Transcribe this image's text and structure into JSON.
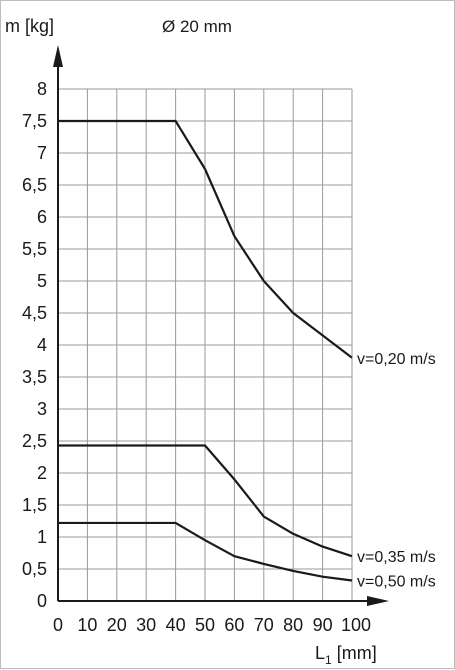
{
  "chart_data": {
    "type": "line",
    "title": "Ø 20 mm",
    "ylabel": "m [kg]",
    "xlabel_main": "L",
    "xlabel_sub": "1",
    "xlabel_unit": "[mm]",
    "xlim": [
      0,
      100
    ],
    "ylim": [
      0,
      8
    ],
    "grid": true,
    "x_ticks": [
      {
        "v": 0,
        "label": "0"
      },
      {
        "v": 10,
        "label": "10"
      },
      {
        "v": 20,
        "label": "20"
      },
      {
        "v": 30,
        "label": "30"
      },
      {
        "v": 40,
        "label": "40"
      },
      {
        "v": 50,
        "label": "50"
      },
      {
        "v": 60,
        "label": "60"
      },
      {
        "v": 70,
        "label": "70"
      },
      {
        "v": 80,
        "label": "80"
      },
      {
        "v": 90,
        "label": "90"
      },
      {
        "v": 100,
        "label": "100"
      }
    ],
    "y_ticks": [
      {
        "v": 0,
        "label": "0"
      },
      {
        "v": 0.5,
        "label": "0,5"
      },
      {
        "v": 1,
        "label": "1"
      },
      {
        "v": 1.5,
        "label": "1,5"
      },
      {
        "v": 2,
        "label": "2"
      },
      {
        "v": 2.5,
        "label": "2,5"
      },
      {
        "v": 3,
        "label": "3"
      },
      {
        "v": 3.5,
        "label": "3,5"
      },
      {
        "v": 4,
        "label": "4"
      },
      {
        "v": 4.5,
        "label": "4,5"
      },
      {
        "v": 5,
        "label": "5"
      },
      {
        "v": 5.5,
        "label": "5,5"
      },
      {
        "v": 6,
        "label": "6"
      },
      {
        "v": 6.5,
        "label": "6,5"
      },
      {
        "v": 7,
        "label": "7"
      },
      {
        "v": 7.5,
        "label": "7,5"
      },
      {
        "v": 8,
        "label": "8"
      }
    ],
    "series": [
      {
        "name": "v=0,20 m/s",
        "x": [
          0,
          40,
          50,
          60,
          70,
          80,
          90,
          100
        ],
        "y": [
          7.5,
          7.5,
          6.75,
          5.7,
          5.0,
          4.5,
          4.15,
          3.8
        ]
      },
      {
        "name": "v=0,35 m/s",
        "x": [
          0,
          50,
          60,
          70,
          80,
          90,
          100
        ],
        "y": [
          2.43,
          2.43,
          1.9,
          1.32,
          1.05,
          0.85,
          0.7
        ]
      },
      {
        "name": "v=0,50 m/s",
        "x": [
          0,
          40,
          50,
          60,
          70,
          80,
          90,
          100
        ],
        "y": [
          1.22,
          1.22,
          0.95,
          0.7,
          0.58,
          0.47,
          0.38,
          0.32
        ]
      }
    ],
    "colors": {
      "line": "#1a1a1a",
      "grid": "#9a9a9a",
      "axis": "#1a1a1a"
    }
  }
}
